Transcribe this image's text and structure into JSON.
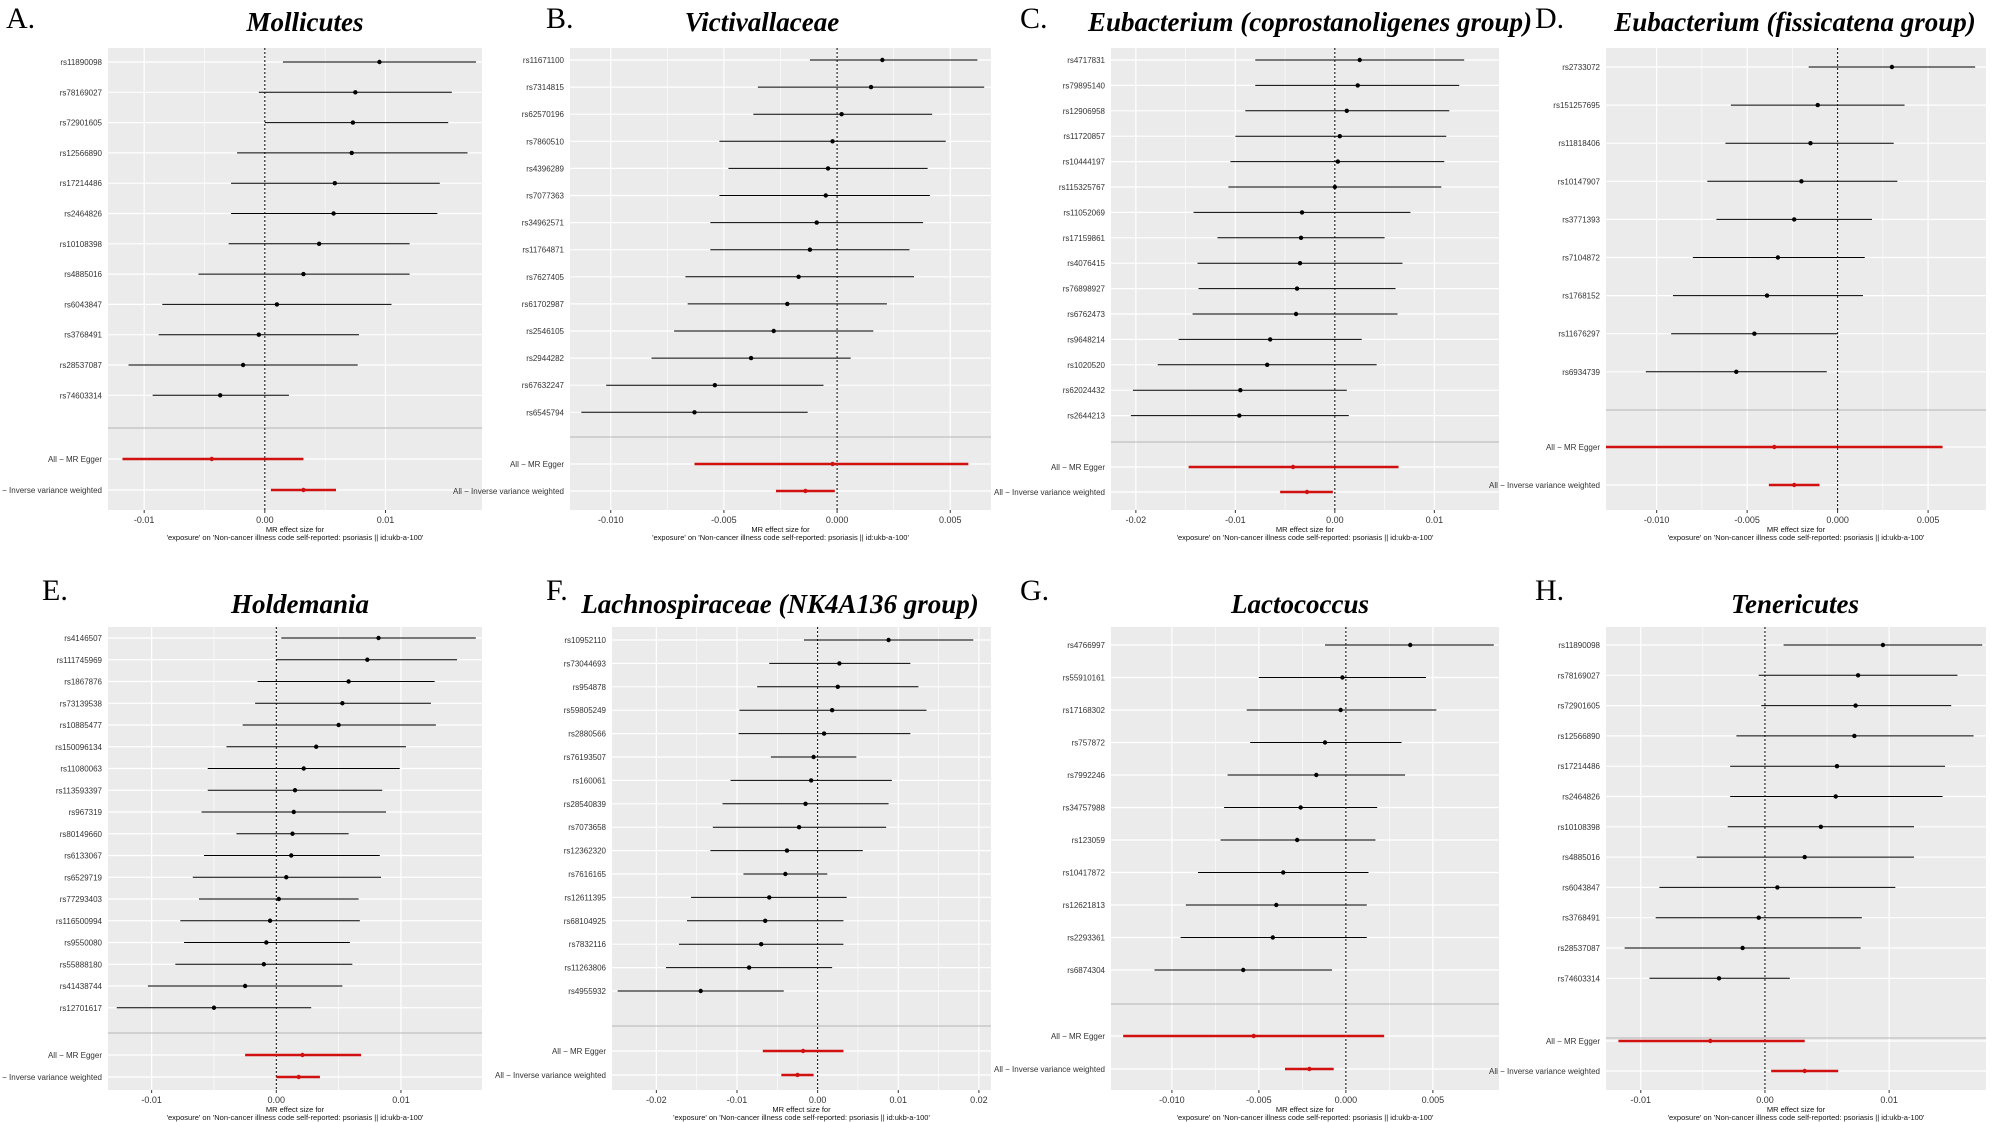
{
  "figure": {
    "xlabel_line1": "MR effect size for",
    "xlabel_line2": "'exposure' on 'Non-cancer illness code  self-reported: psoriasis || id:ukb-a-100'",
    "summary_labels": [
      "All − MR Egger",
      "All − Inverse variance weighted"
    ],
    "colors": {
      "panel_bg": "#ebebeb",
      "grid": "#ffffff",
      "snp": "#000000",
      "summary": "#d11010"
    }
  },
  "chart_data": [
    {
      "type": "forest",
      "panel_label": "A.",
      "title": "Mollicutes",
      "xlim": [
        -0.013,
        0.018
      ],
      "xticks": [
        -0.01,
        0,
        0.01
      ],
      "xtick_labels": [
        "-0.01",
        "0.00",
        "0.01"
      ],
      "snps": [
        {
          "label": "rs11890098",
          "b": 0.0095,
          "lo": 0.0015,
          "hi": 0.0175
        },
        {
          "label": "rs78169027",
          "b": 0.0075,
          "lo": -0.0005,
          "hi": 0.0155
        },
        {
          "label": "rs72901605",
          "b": 0.0073,
          "lo": 0.0,
          "hi": 0.0152
        },
        {
          "label": "rs12566890",
          "b": 0.0072,
          "lo": -0.0023,
          "hi": 0.0168
        },
        {
          "label": "rs17214486",
          "b": 0.0058,
          "lo": -0.0028,
          "hi": 0.0145
        },
        {
          "label": "rs2464826",
          "b": 0.0057,
          "lo": -0.0028,
          "hi": 0.0143
        },
        {
          "label": "rs10108398",
          "b": 0.0045,
          "lo": -0.003,
          "hi": 0.012
        },
        {
          "label": "rs4885016",
          "b": 0.0032,
          "lo": -0.0055,
          "hi": 0.012
        },
        {
          "label": "rs6043847",
          "b": 0.001,
          "lo": -0.0085,
          "hi": 0.0105
        },
        {
          "label": "rs3768491",
          "b": -0.0005,
          "lo": -0.0088,
          "hi": 0.0078
        },
        {
          "label": "rs28537087",
          "b": -0.0018,
          "lo": -0.0113,
          "hi": 0.0077
        },
        {
          "label": "rs74603314",
          "b": -0.0037,
          "lo": -0.0093,
          "hi": 0.002
        }
      ],
      "egger": {
        "b": -0.0044,
        "lo": -0.0118,
        "hi": 0.0032
      },
      "ivw": {
        "b": 0.0032,
        "lo": 0.0005,
        "hi": 0.0059
      }
    },
    {
      "type": "forest",
      "panel_label": "B.",
      "title": "Victivallaceae",
      "xlim": [
        -0.0118,
        0.0068
      ],
      "xticks": [
        -0.01,
        -0.005,
        0,
        0.005
      ],
      "xtick_labels": [
        "-0.010",
        "-0.005",
        "0.000",
        "0.005"
      ],
      "snps": [
        {
          "label": "rs11671100",
          "b": 0.002,
          "lo": -0.0012,
          "hi": 0.0062
        },
        {
          "label": "rs7314815",
          "b": 0.0015,
          "lo": -0.0035,
          "hi": 0.0065
        },
        {
          "label": "rs62570196",
          "b": 0.0002,
          "lo": -0.0037,
          "hi": 0.0042
        },
        {
          "label": "rs7860510",
          "b": -0.0002,
          "lo": -0.0052,
          "hi": 0.0048
        },
        {
          "label": "rs4396289",
          "b": -0.0004,
          "lo": -0.0048,
          "hi": 0.004
        },
        {
          "label": "rs7077363",
          "b": -0.0005,
          "lo": -0.0052,
          "hi": 0.0041
        },
        {
          "label": "rs34962571",
          "b": -0.0009,
          "lo": -0.0056,
          "hi": 0.0038
        },
        {
          "label": "rs11764871",
          "b": -0.0012,
          "lo": -0.0056,
          "hi": 0.0032
        },
        {
          "label": "rs7627405",
          "b": -0.0017,
          "lo": -0.0067,
          "hi": 0.0034
        },
        {
          "label": "rs61702987",
          "b": -0.0022,
          "lo": -0.0066,
          "hi": 0.0022
        },
        {
          "label": "rs2546105",
          "b": -0.0028,
          "lo": -0.0072,
          "hi": 0.0016
        },
        {
          "label": "rs2944282",
          "b": -0.0038,
          "lo": -0.0082,
          "hi": 0.0006
        },
        {
          "label": "rs67632247",
          "b": -0.0054,
          "lo": -0.0102,
          "hi": -0.0006
        },
        {
          "label": "rs6545794",
          "b": -0.0063,
          "lo": -0.0113,
          "hi": -0.0013
        }
      ],
      "egger": {
        "b": -0.0002,
        "lo": -0.0063,
        "hi": 0.0058
      },
      "ivw": {
        "b": -0.0014,
        "lo": -0.0027,
        "hi": -0.0001
      }
    },
    {
      "type": "forest",
      "panel_label": "C.",
      "title": "Eubacterium (coprostanoligenes group)",
      "xlim": [
        -0.0225,
        0.0165
      ],
      "xticks": [
        -0.02,
        -0.01,
        0,
        0.01
      ],
      "xtick_labels": [
        "-0.02",
        "-0.01",
        "0.00",
        "0.01"
      ],
      "snps": [
        {
          "label": "rs4717831",
          "b": 0.0025,
          "lo": -0.008,
          "hi": 0.013
        },
        {
          "label": "rs79895140",
          "b": 0.0023,
          "lo": -0.008,
          "hi": 0.0125
        },
        {
          "label": "rs12906958",
          "b": 0.0012,
          "lo": -0.009,
          "hi": 0.0115
        },
        {
          "label": "rs11720857",
          "b": 0.0005,
          "lo": -0.01,
          "hi": 0.0112
        },
        {
          "label": "rs10444197",
          "b": 0.0003,
          "lo": -0.0105,
          "hi": 0.011
        },
        {
          "label": "rs115325767",
          "b": 0.0,
          "lo": -0.0107,
          "hi": 0.0107
        },
        {
          "label": "rs11052069",
          "b": -0.0033,
          "lo": -0.0142,
          "hi": 0.0076
        },
        {
          "label": "rs17159861",
          "b": -0.0034,
          "lo": -0.0118,
          "hi": 0.005
        },
        {
          "label": "rs4076415",
          "b": -0.0035,
          "lo": -0.0138,
          "hi": 0.0068
        },
        {
          "label": "rs76898927",
          "b": -0.0038,
          "lo": -0.0137,
          "hi": 0.0061
        },
        {
          "label": "rs6762473",
          "b": -0.0039,
          "lo": -0.0143,
          "hi": 0.0063
        },
        {
          "label": "rs9648214",
          "b": -0.0065,
          "lo": -0.0157,
          "hi": 0.0027
        },
        {
          "label": "rs1020520",
          "b": -0.0068,
          "lo": -0.0178,
          "hi": 0.0042
        },
        {
          "label": "rs62024432",
          "b": -0.0095,
          "lo": -0.0203,
          "hi": 0.0012
        },
        {
          "label": "rs2644213",
          "b": -0.0096,
          "lo": -0.0205,
          "hi": 0.0014
        }
      ],
      "egger": {
        "b": -0.0042,
        "lo": -0.0147,
        "hi": 0.0064
      },
      "ivw": {
        "b": -0.0028,
        "lo": -0.0055,
        "hi": -0.0002
      }
    },
    {
      "type": "forest",
      "panel_label": "D.",
      "title": "Eubacterium (fissicatena group)",
      "xlim": [
        -0.0128,
        0.0082
      ],
      "xticks": [
        -0.01,
        -0.005,
        0,
        0.005
      ],
      "xtick_labels": [
        "-0.010",
        "-0.005",
        "0.000",
        "0.005"
      ],
      "snps": [
        {
          "label": "rs2733072",
          "b": 0.003,
          "lo": -0.0016,
          "hi": 0.0076
        },
        {
          "label": "rs151257695",
          "b": -0.0011,
          "lo": -0.0059,
          "hi": 0.0037
        },
        {
          "label": "rs11818406",
          "b": -0.0015,
          "lo": -0.0062,
          "hi": 0.0031
        },
        {
          "label": "rs10147907",
          "b": -0.002,
          "lo": -0.0072,
          "hi": 0.0033
        },
        {
          "label": "rs3771393",
          "b": -0.0024,
          "lo": -0.0067,
          "hi": 0.0019
        },
        {
          "label": "rs7104872",
          "b": -0.0033,
          "lo": -0.008,
          "hi": 0.0015
        },
        {
          "label": "rs1768152",
          "b": -0.0039,
          "lo": -0.0091,
          "hi": 0.0014
        },
        {
          "label": "rs11676297",
          "b": -0.0046,
          "lo": -0.0092,
          "hi": 0.0
        },
        {
          "label": "rs6934739",
          "b": -0.0056,
          "lo": -0.0106,
          "hi": -0.0006
        }
      ],
      "egger": {
        "b": -0.0035,
        "lo": -0.0128,
        "hi": 0.0058
      },
      "ivw": {
        "b": -0.0024,
        "lo": -0.0038,
        "hi": -0.001
      }
    },
    {
      "type": "forest",
      "panel_label": "E.",
      "title": "Holdemania",
      "xlim": [
        -0.0135,
        0.0165
      ],
      "xticks": [
        -0.01,
        0,
        0.01
      ],
      "xtick_labels": [
        "-0.01",
        "0.00",
        "0.01"
      ],
      "snps": [
        {
          "label": "rs4146507",
          "b": 0.0082,
          "lo": 0.0004,
          "hi": 0.016
        },
        {
          "label": "rs111745969",
          "b": 0.0073,
          "lo": 0.0,
          "hi": 0.0145
        },
        {
          "label": "rs1867876",
          "b": 0.0058,
          "lo": -0.0015,
          "hi": 0.0127
        },
        {
          "label": "rs73139538",
          "b": 0.0053,
          "lo": -0.0017,
          "hi": 0.0124
        },
        {
          "label": "rs10885477",
          "b": 0.005,
          "lo": -0.0027,
          "hi": 0.0128
        },
        {
          "label": "rs150096134",
          "b": 0.0032,
          "lo": -0.004,
          "hi": 0.0104
        },
        {
          "label": "rs11080063",
          "b": 0.0022,
          "lo": -0.0055,
          "hi": 0.0099
        },
        {
          "label": "rs113593397",
          "b": 0.0015,
          "lo": -0.0055,
          "hi": 0.0085
        },
        {
          "label": "rs967319",
          "b": 0.0014,
          "lo": -0.006,
          "hi": 0.0088
        },
        {
          "label": "rs80149660",
          "b": 0.0013,
          "lo": -0.0032,
          "hi": 0.0058
        },
        {
          "label": "rs6133067",
          "b": 0.0012,
          "lo": -0.0058,
          "hi": 0.0083
        },
        {
          "label": "rs6529719",
          "b": 0.0008,
          "lo": -0.0067,
          "hi": 0.0084
        },
        {
          "label": "rs77293403",
          "b": 0.0002,
          "lo": -0.0062,
          "hi": 0.0066
        },
        {
          "label": "rs116500994",
          "b": -0.0005,
          "lo": -0.0077,
          "hi": 0.0067
        },
        {
          "label": "rs9550080",
          "b": -0.0008,
          "lo": -0.0074,
          "hi": 0.0059
        },
        {
          "label": "rs55888180",
          "b": -0.001,
          "lo": -0.0081,
          "hi": 0.0061
        },
        {
          "label": "rs41438744",
          "b": -0.0025,
          "lo": -0.0103,
          "hi": 0.0053
        },
        {
          "label": "rs12701617",
          "b": -0.005,
          "lo": -0.0128,
          "hi": 0.0028
        }
      ],
      "egger": {
        "b": 0.0021,
        "lo": -0.0025,
        "hi": 0.0068
      },
      "ivw": {
        "b": 0.0018,
        "lo": 0.0,
        "hi": 0.0035
      }
    },
    {
      "type": "forest",
      "panel_label": "F.",
      "title": "Lachnospiraceae (NK4A136 group)",
      "xlim": [
        -0.0255,
        0.0215
      ],
      "xticks": [
        -0.02,
        -0.01,
        0,
        0.01,
        0.02
      ],
      "xtick_labels": [
        "-0.02",
        "-0.01",
        "0.00",
        "0.01",
        "0.02"
      ],
      "snps": [
        {
          "label": "rs10952110",
          "b": 0.0088,
          "lo": -0.0017,
          "hi": 0.0193
        },
        {
          "label": "rs73044693",
          "b": 0.0027,
          "lo": -0.006,
          "hi": 0.0115
        },
        {
          "label": "rs954878",
          "b": 0.0025,
          "lo": -0.0075,
          "hi": 0.0125
        },
        {
          "label": "rs59805249",
          "b": 0.0018,
          "lo": -0.0097,
          "hi": 0.0135
        },
        {
          "label": "rs2880566",
          "b": 0.0008,
          "lo": -0.0098,
          "hi": 0.0115
        },
        {
          "label": "rs76193507",
          "b": -0.0005,
          "lo": -0.0058,
          "hi": 0.0048
        },
        {
          "label": "rs160061",
          "b": -0.0008,
          "lo": -0.0108,
          "hi": 0.0092
        },
        {
          "label": "rs28540839",
          "b": -0.0015,
          "lo": -0.0118,
          "hi": 0.0088
        },
        {
          "label": "rs7073658",
          "b": -0.0023,
          "lo": -0.013,
          "hi": 0.0085
        },
        {
          "label": "rs12362320",
          "b": -0.0038,
          "lo": -0.0133,
          "hi": 0.0056
        },
        {
          "label": "rs7616165",
          "b": -0.004,
          "lo": -0.0092,
          "hi": 0.0012
        },
        {
          "label": "rs12611395",
          "b": -0.006,
          "lo": -0.0157,
          "hi": 0.0036
        },
        {
          "label": "rs68104925",
          "b": -0.0065,
          "lo": -0.0162,
          "hi": 0.0032
        },
        {
          "label": "rs7832116",
          "b": -0.007,
          "lo": -0.0172,
          "hi": 0.0032
        },
        {
          "label": "rs11263806",
          "b": -0.0085,
          "lo": -0.0188,
          "hi": 0.0018
        },
        {
          "label": "rs4955932",
          "b": -0.0145,
          "lo": -0.0248,
          "hi": -0.0042
        }
      ],
      "egger": {
        "b": -0.0018,
        "lo": -0.0068,
        "hi": 0.0032
      },
      "ivw": {
        "b": -0.0025,
        "lo": -0.0045,
        "hi": -0.0005
      }
    },
    {
      "type": "forest",
      "panel_label": "G.",
      "title": "Lactococcus",
      "xlim": [
        -0.0135,
        0.0088
      ],
      "xticks": [
        -0.01,
        -0.005,
        0,
        0.005
      ],
      "xtick_labels": [
        "-0.010",
        "-0.005",
        "0.000",
        "0.005"
      ],
      "snps": [
        {
          "label": "rs4766997",
          "b": 0.0037,
          "lo": -0.0012,
          "hi": 0.0085
        },
        {
          "label": "rs55910161",
          "b": -0.0002,
          "lo": -0.005,
          "hi": 0.0046
        },
        {
          "label": "rs17168302",
          "b": -0.0003,
          "lo": -0.0057,
          "hi": 0.0052
        },
        {
          "label": "rs757872",
          "b": -0.0012,
          "lo": -0.0055,
          "hi": 0.0032
        },
        {
          "label": "rs7992246",
          "b": -0.0017,
          "lo": -0.0068,
          "hi": 0.0034
        },
        {
          "label": "rs34757988",
          "b": -0.0026,
          "lo": -0.007,
          "hi": 0.0018
        },
        {
          "label": "rs123059",
          "b": -0.0028,
          "lo": -0.0072,
          "hi": 0.0017
        },
        {
          "label": "rs10417872",
          "b": -0.0036,
          "lo": -0.0085,
          "hi": 0.0013
        },
        {
          "label": "rs12621813",
          "b": -0.004,
          "lo": -0.0092,
          "hi": 0.0012
        },
        {
          "label": "rs2293361",
          "b": -0.0042,
          "lo": -0.0095,
          "hi": 0.0012
        },
        {
          "label": "rs6874304",
          "b": -0.0059,
          "lo": -0.011,
          "hi": -0.0008
        }
      ],
      "egger": {
        "b": -0.0053,
        "lo": -0.0128,
        "hi": 0.0022
      },
      "ivw": {
        "b": -0.0021,
        "lo": -0.0035,
        "hi": -0.0007
      }
    },
    {
      "type": "forest",
      "panel_label": "H.",
      "title": "Tenericutes",
      "xlim": [
        -0.0128,
        0.0178
      ],
      "xticks": [
        -0.01,
        0,
        0.01
      ],
      "xtick_labels": [
        "-0.01",
        "0.00",
        "0.01"
      ],
      "snps": [
        {
          "label": "rs11890098",
          "b": 0.0095,
          "lo": 0.0015,
          "hi": 0.0175
        },
        {
          "label": "rs78169027",
          "b": 0.0075,
          "lo": -0.0005,
          "hi": 0.0155
        },
        {
          "label": "rs72901605",
          "b": 0.0073,
          "lo": -0.0003,
          "hi": 0.015
        },
        {
          "label": "rs12566890",
          "b": 0.0072,
          "lo": -0.0023,
          "hi": 0.0168
        },
        {
          "label": "rs17214486",
          "b": 0.0058,
          "lo": -0.0028,
          "hi": 0.0145
        },
        {
          "label": "rs2464826",
          "b": 0.0057,
          "lo": -0.0028,
          "hi": 0.0143
        },
        {
          "label": "rs10108398",
          "b": 0.0045,
          "lo": -0.003,
          "hi": 0.012
        },
        {
          "label": "rs4885016",
          "b": 0.0032,
          "lo": -0.0055,
          "hi": 0.012
        },
        {
          "label": "rs6043847",
          "b": 0.001,
          "lo": -0.0085,
          "hi": 0.0105
        },
        {
          "label": "rs3768491",
          "b": -0.0005,
          "lo": -0.0088,
          "hi": 0.0078
        },
        {
          "label": "rs28537087",
          "b": -0.0018,
          "lo": -0.0113,
          "hi": 0.0077
        },
        {
          "label": "rs74603314",
          "b": -0.0037,
          "lo": -0.0093,
          "hi": 0.002
        }
      ],
      "egger": {
        "b": -0.0044,
        "lo": -0.0118,
        "hi": 0.0032
      },
      "ivw": {
        "b": 0.0032,
        "lo": 0.0005,
        "hi": 0.0059
      }
    }
  ]
}
